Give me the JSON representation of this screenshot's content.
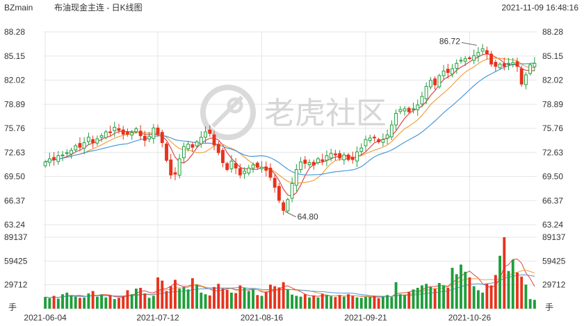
{
  "header": {
    "symbol": "BZmain",
    "title": "布油现金主连 - 日K线图",
    "datetime": "2021-11-09 16:48:16"
  },
  "watermark": {
    "text": "老虎社区"
  },
  "colors": {
    "up": "#1e9e3a",
    "down": "#e8321c",
    "ma5": "#d9454b",
    "ma10": "#f0a040",
    "ma20": "#4a98d8",
    "grid": "#e6e6e6",
    "text": "#333333"
  },
  "chart_data": [
    {
      "type": "candlestick",
      "title": "",
      "yticks": [
        88.28,
        85.15,
        82.02,
        78.89,
        75.76,
        72.63,
        69.5,
        66.37,
        63.24
      ],
      "ylim": [
        63.24,
        88.28
      ],
      "xticks": [
        "2021-06-04",
        "2021-07-12",
        "2021-08-16",
        "2021-09-21",
        "2021-10-26"
      ],
      "xtick_index": [
        0,
        26,
        50,
        74,
        98
      ],
      "annotations": [
        {
          "text": "86.72",
          "index": 100,
          "value": 86.72,
          "kind": "high"
        },
        {
          "text": "64.80",
          "index": 55,
          "value": 64.8,
          "kind": "low"
        }
      ],
      "close": [
        71.4,
        71.8,
        71.7,
        72.2,
        72.3,
        72.6,
        72.9,
        73.5,
        73.3,
        73.9,
        74.6,
        73.9,
        74.4,
        74.8,
        75.3,
        75.2,
        75.9,
        75.5,
        75.0,
        75.0,
        75.2,
        75.7,
        74.8,
        74.2,
        74.7,
        75.8,
        75.0,
        73.9,
        71.6,
        69.7,
        69.8,
        71.8,
        73.4,
        73.7,
        73.3,
        74.0,
        74.6,
        75.3,
        75.1,
        73.6,
        72.6,
        71.3,
        70.4,
        71.5,
        70.6,
        69.7,
        70.2,
        70.6,
        71.0,
        70.7,
        70.7,
        70.3,
        69.4,
        68.1,
        66.4,
        65.1,
        66.5,
        68.6,
        70.4,
        71.4,
        71.2,
        71.3,
        71.0,
        71.8,
        71.5,
        72.2,
        72.5,
        72.3,
        71.9,
        72.3,
        71.7,
        71.7,
        72.7,
        73.2,
        74.3,
        74.5,
        74.6,
        74.0,
        74.3,
        74.9,
        76.2,
        77.7,
        78.2,
        78.3,
        77.9,
        78.3,
        78.8,
        79.9,
        81.2,
        82.0,
        81.4,
        82.6,
        83.2,
        83.0,
        83.5,
        84.2,
        84.6,
        84.8,
        84.9,
        85.2,
        85.6,
        86.1,
        85.4,
        84.1,
        83.8,
        84.1,
        83.8,
        84.2,
        84.3,
        83.8,
        81.5,
        82.7,
        84.0,
        84.2
      ],
      "series": [
        {
          "name": "MA5",
          "type": "line",
          "color_key": "ma5",
          "window": 5
        },
        {
          "name": "MA10",
          "type": "line",
          "color_key": "ma10",
          "window": 10
        },
        {
          "name": "MA20",
          "type": "line",
          "color_key": "ma20",
          "window": 20
        }
      ]
    },
    {
      "type": "bar",
      "title": "",
      "ylabel": "手",
      "yticks": [
        89137,
        59425,
        29712
      ],
      "ylim": [
        0,
        89137
      ],
      "volume": [
        14500,
        13000,
        16000,
        12500,
        18000,
        20000,
        16000,
        15000,
        13500,
        14000,
        19000,
        22000,
        15000,
        17500,
        14000,
        16500,
        12000,
        13500,
        15500,
        23000,
        18000,
        25000,
        26000,
        19000,
        13500,
        16000,
        39000,
        35000,
        22000,
        28000,
        36000,
        25000,
        27000,
        24000,
        38000,
        30000,
        20000,
        18000,
        16500,
        27000,
        31000,
        25000,
        23500,
        20000,
        19500,
        29000,
        26000,
        22000,
        24000,
        17000,
        16000,
        21000,
        30000,
        28000,
        26500,
        33000,
        24000,
        17500,
        16000,
        15000,
        18000,
        14000,
        16500,
        14000,
        18500,
        17000,
        15500,
        14500,
        17000,
        15000,
        18000,
        16000,
        14000,
        13500,
        15000,
        14500,
        16000,
        13000,
        15000,
        17000,
        14500,
        33000,
        18000,
        17000,
        21000,
        24000,
        26000,
        29000,
        31000,
        27000,
        25000,
        32000,
        29000,
        26000,
        51000,
        43000,
        55000,
        46000,
        39000,
        28000,
        23000,
        20000,
        31000,
        29000,
        42000,
        66000,
        91000,
        47000,
        61000,
        45000,
        40000,
        30000,
        12000,
        11000
      ],
      "series": [
        {
          "name": "VMA5",
          "type": "line",
          "color_key": "ma5",
          "window": 5
        },
        {
          "name": "VMA10",
          "type": "line",
          "color_key": "ma10",
          "window": 10
        },
        {
          "name": "VMA20",
          "type": "line",
          "color_key": "ma20",
          "window": 20
        }
      ]
    }
  ]
}
